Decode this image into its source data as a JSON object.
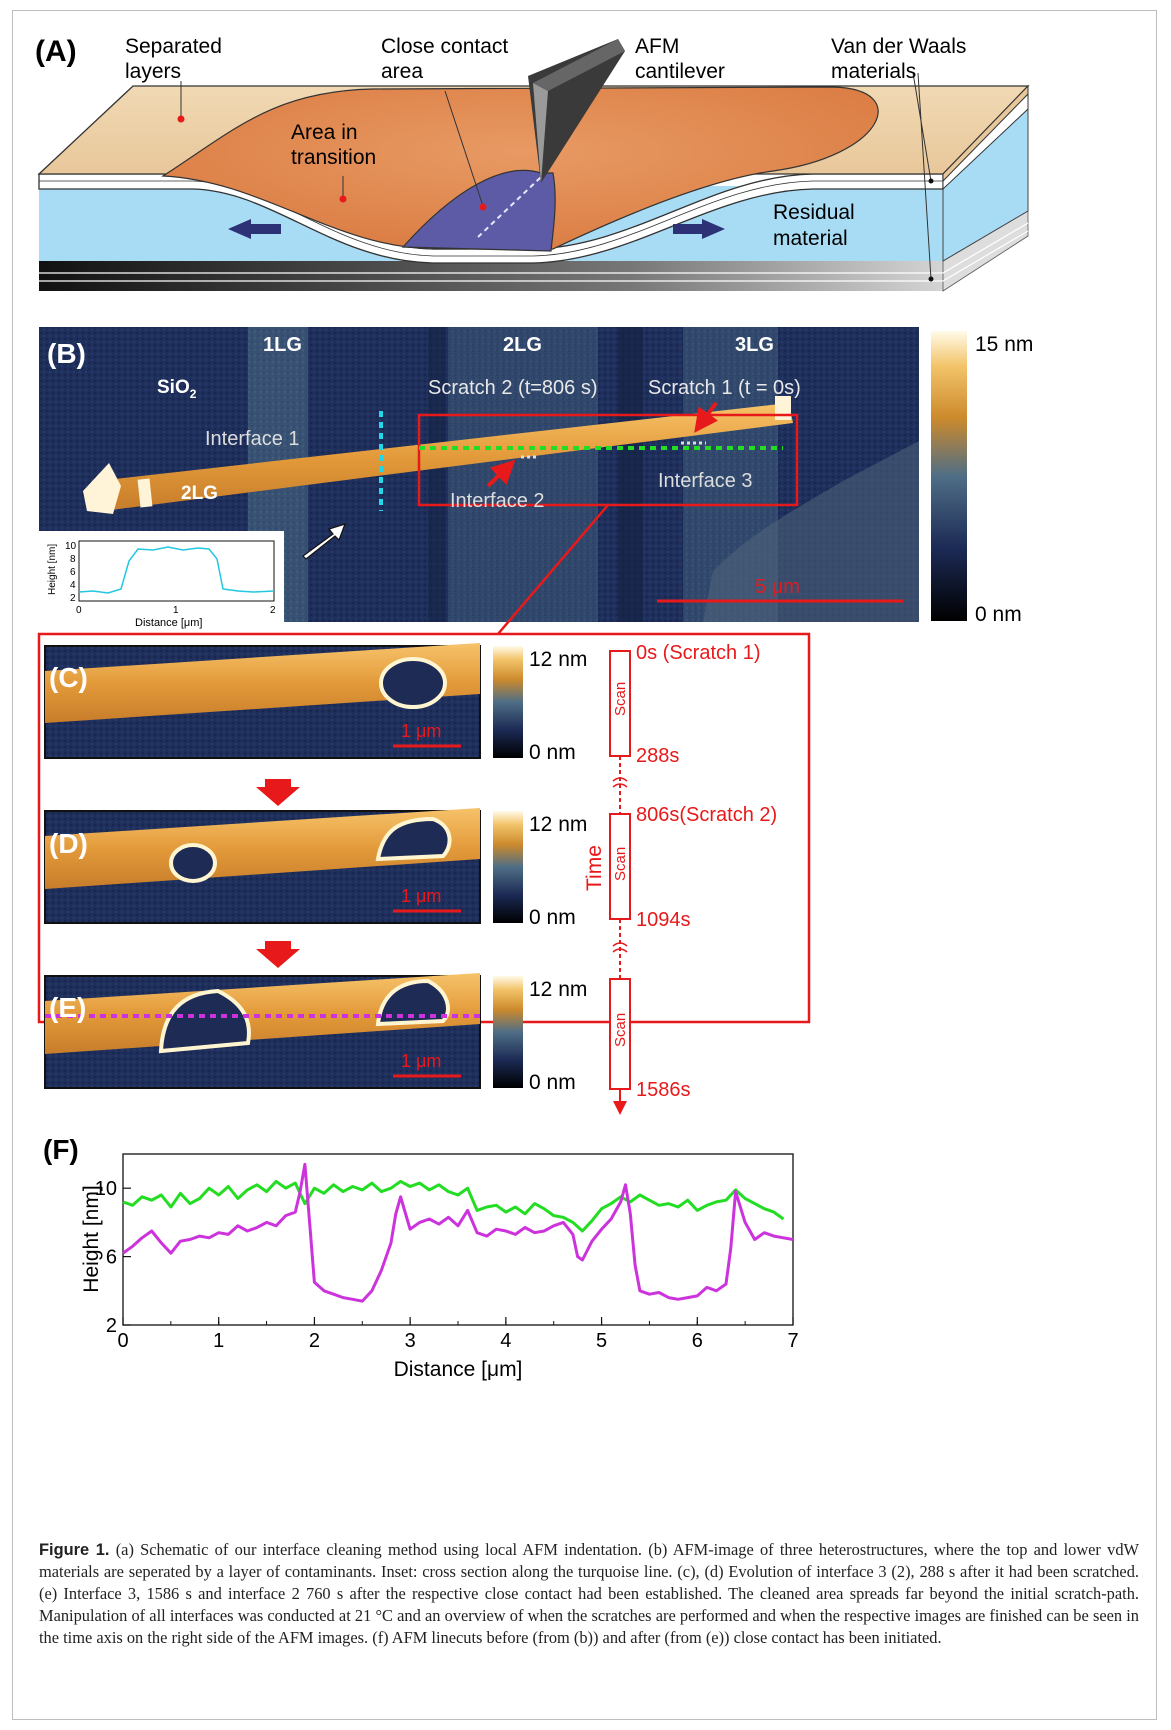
{
  "panelA": {
    "label": "(A)",
    "separated_layers": [
      "Separated",
      "layers"
    ],
    "close_contact": [
      "Close contact",
      "area"
    ],
    "afm": [
      "AFM",
      "cantilever"
    ],
    "vdw": [
      "Van der Waals",
      "materials"
    ],
    "transition": [
      "Area in",
      "transition"
    ],
    "residual": [
      "Residual",
      "material"
    ]
  },
  "panelB": {
    "label": "(B)",
    "region_1lg": "1LG",
    "region_2lg": "2LG",
    "region_3lg": "3LG",
    "sio2": "SiO",
    "sio2_sub": "2",
    "scratch2": "Scratch 2 (t=806 s)",
    "scratch1": "Scratch 1 (t = 0s)",
    "interface1": "Interface 1",
    "interface2": "Interface 2",
    "interface3": "Interface 3",
    "flake_2lg": "2LG",
    "scalebar": "5 μm",
    "colorbar_max": "15 nm",
    "colorbar_min": "0 nm",
    "inset": {
      "ylabel": "Height [nm]",
      "xlabel": "Distance [μm]",
      "yticks": [
        "10",
        "8",
        "6",
        "4",
        "2"
      ],
      "xticks": [
        "0",
        "1",
        "2"
      ]
    }
  },
  "panelsCDE": {
    "labels": [
      "(C)",
      "(D)",
      "(E)"
    ],
    "colorbar_max": "12 nm",
    "colorbar_min": "0 nm",
    "scalebar": "1 μm",
    "time_label": "Time",
    "scan_label": "Scan",
    "time_marks": [
      "0s (Scratch 1)",
      "288s",
      "806s(Scratch 2)",
      "1094s",
      "1586s"
    ]
  },
  "chart_data": {
    "type": "line",
    "panel_label": "(F)",
    "xlabel": "Distance [μm]",
    "ylabel": "Height [nm]",
    "xlim": [
      0,
      7
    ],
    "ylim": [
      2,
      12
    ],
    "xticks": [
      "0",
      "1",
      "2",
      "3",
      "4",
      "5",
      "6",
      "7"
    ],
    "yticks": [
      "2",
      "6",
      "10"
    ],
    "series": [
      {
        "color": "#22dd22",
        "x": [
          0,
          0.1,
          0.2,
          0.3,
          0.4,
          0.5,
          0.6,
          0.7,
          0.8,
          0.9,
          1.0,
          1.1,
          1.2,
          1.3,
          1.4,
          1.5,
          1.6,
          1.7,
          1.8,
          1.9,
          2.0,
          2.1,
          2.2,
          2.3,
          2.4,
          2.5,
          2.6,
          2.7,
          2.8,
          2.9,
          3.0,
          3.1,
          3.2,
          3.3,
          3.4,
          3.5,
          3.6,
          3.7,
          3.8,
          3.9,
          4.0,
          4.1,
          4.2,
          4.3,
          4.4,
          4.5,
          4.6,
          4.7,
          4.8,
          4.9,
          5.0,
          5.1,
          5.2,
          5.3,
          5.4,
          5.5,
          5.6,
          5.7,
          5.8,
          5.9,
          6.0,
          6.1,
          6.2,
          6.3,
          6.4,
          6.5,
          6.6,
          6.7,
          6.8,
          6.9
        ],
        "y": [
          9.2,
          9.0,
          9.5,
          9.3,
          9.6,
          8.9,
          9.7,
          9.1,
          9.4,
          10.0,
          9.6,
          10.1,
          9.4,
          9.9,
          10.2,
          9.8,
          10.4,
          10.0,
          10.3,
          9.1,
          10.0,
          9.7,
          10.2,
          9.8,
          10.1,
          9.9,
          10.3,
          9.8,
          10.0,
          10.4,
          10.1,
          10.3,
          9.9,
          10.2,
          9.8,
          9.6,
          10.0,
          8.7,
          8.9,
          9.0,
          8.6,
          8.9,
          8.5,
          9.1,
          8.8,
          8.4,
          8.3,
          8.0,
          7.5,
          8.1,
          8.8,
          9.1,
          9.5,
          9.2,
          9.6,
          9.3,
          9.0,
          9.1,
          8.9,
          9.3,
          8.7,
          9.0,
          9.2,
          9.3,
          9.9,
          9.4,
          9.1,
          8.8,
          8.6,
          8.2
        ]
      },
      {
        "color": "#cc33dd",
        "x": [
          0,
          0.1,
          0.2,
          0.3,
          0.4,
          0.5,
          0.6,
          0.7,
          0.8,
          0.9,
          1.0,
          1.1,
          1.2,
          1.3,
          1.4,
          1.5,
          1.6,
          1.7,
          1.8,
          1.85,
          1.9,
          1.95,
          2.0,
          2.1,
          2.2,
          2.3,
          2.4,
          2.5,
          2.6,
          2.7,
          2.8,
          2.85,
          2.9,
          3.0,
          3.1,
          3.2,
          3.3,
          3.4,
          3.5,
          3.6,
          3.7,
          3.8,
          3.9,
          4.0,
          4.1,
          4.2,
          4.3,
          4.4,
          4.5,
          4.6,
          4.7,
          4.75,
          4.8,
          4.9,
          5.0,
          5.1,
          5.2,
          5.25,
          5.3,
          5.35,
          5.4,
          5.5,
          5.6,
          5.7,
          5.8,
          5.9,
          6.0,
          6.1,
          6.2,
          6.3,
          6.35,
          6.4,
          6.5,
          6.6,
          6.7,
          6.8,
          6.9,
          7.0
        ],
        "y": [
          6.2,
          6.6,
          7.1,
          7.5,
          6.8,
          6.2,
          6.9,
          7.0,
          7.2,
          7.1,
          7.4,
          7.3,
          7.8,
          7.5,
          7.7,
          8.0,
          7.8,
          8.4,
          8.6,
          9.8,
          11.4,
          8.0,
          4.5,
          4.0,
          3.8,
          3.6,
          3.5,
          3.4,
          4.0,
          5.2,
          6.8,
          8.5,
          9.5,
          7.6,
          8.0,
          8.2,
          7.9,
          8.3,
          7.8,
          8.7,
          7.4,
          7.2,
          7.6,
          7.5,
          7.3,
          7.7,
          7.4,
          7.5,
          7.8,
          8.0,
          7.3,
          6.0,
          5.8,
          6.9,
          7.6,
          8.2,
          9.2,
          10.2,
          8.5,
          5.5,
          4.0,
          3.8,
          3.9,
          3.6,
          3.5,
          3.6,
          3.7,
          4.2,
          4.0,
          4.4,
          6.5,
          9.8,
          8.0,
          7.0,
          7.4,
          7.2,
          7.1,
          7.0
        ]
      }
    ]
  },
  "caption": {
    "figure_label": "Figure 1.",
    "text": "(a) Schematic of our interface cleaning method using local AFM indentation. (b) AFM-image of three heterostructures, where the top and lower vdW materials are seperated by a layer of contaminants. Inset: cross section along the turquoise line. (c), (d) Evolution of interface 3 (2), 288 s after it had been scratched. (e) Interface 3, 1586 s and interface 2 760 s after the respective close contact had been established. The cleaned area spreads far beyond the initial scratch-path. Manipulation of all interfaces was conducted at 21 °C and an overview of when the scratches are performed and when the respective images are finished can be seen in the time axis on the right side of the AFM images. (f) AFM linecuts before (from (b)) and after (from (e)) close contact has been initiated."
  },
  "colors": {
    "red": "#e8191a",
    "turquoise": "#22d8e8",
    "green_dash": "#22dd22",
    "magenta_dash": "#cc33dd"
  }
}
